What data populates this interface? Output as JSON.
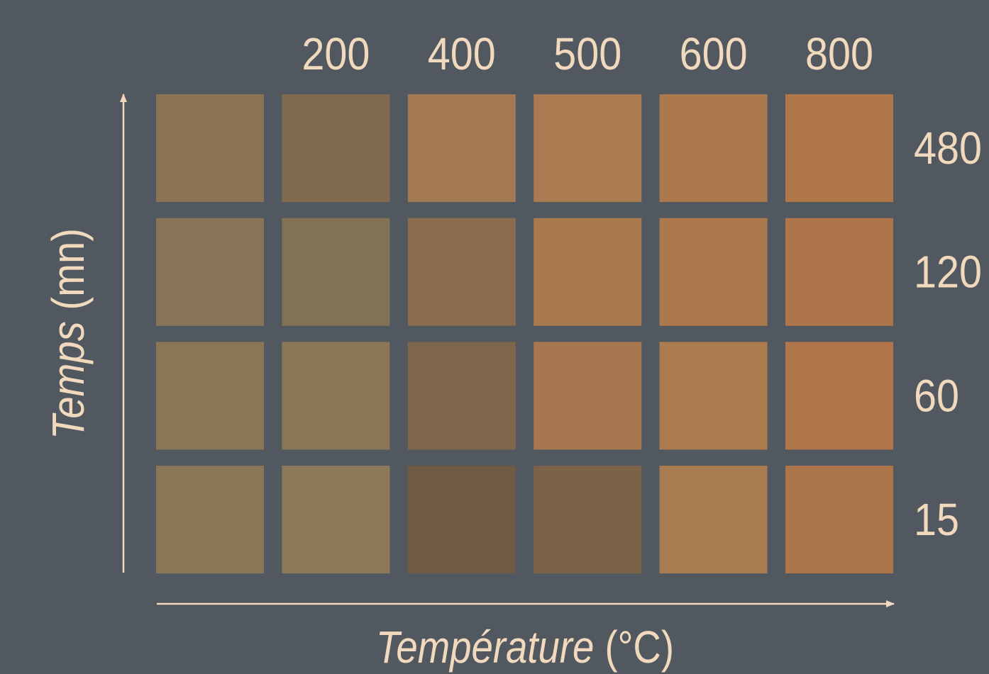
{
  "chart_data": {
    "type": "heatmap",
    "title": "",
    "xlabel": {
      "italic": "Température",
      "unit": " (°C)"
    },
    "ylabel": {
      "italic": "Temps",
      "unit": " (mn)"
    },
    "x_categories": [
      "",
      "200",
      "400",
      "500",
      "600",
      "800"
    ],
    "y_categories": [
      "480",
      "120",
      "60",
      "15"
    ],
    "cells": [
      [
        "#8a7455",
        "#7f6a4f",
        "#a37a52",
        "#ab7a50",
        "#ac794e",
        "#b07748"
      ],
      [
        "#887456",
        "#837155",
        "#8a6c4d",
        "#ab794e",
        "#ac784d",
        "#ae754a"
      ],
      [
        "#8a7657",
        "#8b7658",
        "#7e664c",
        "#a7784f",
        "#ac7b4e",
        "#b0764a"
      ],
      [
        "#8a7657",
        "#8d795a",
        "#705a44",
        "#7b634a",
        "#a87b51",
        "#ac7449"
      ]
    ],
    "colors": {
      "background": "#525860",
      "text": "#f1d9bd",
      "axis": "#f1d9bd"
    }
  }
}
